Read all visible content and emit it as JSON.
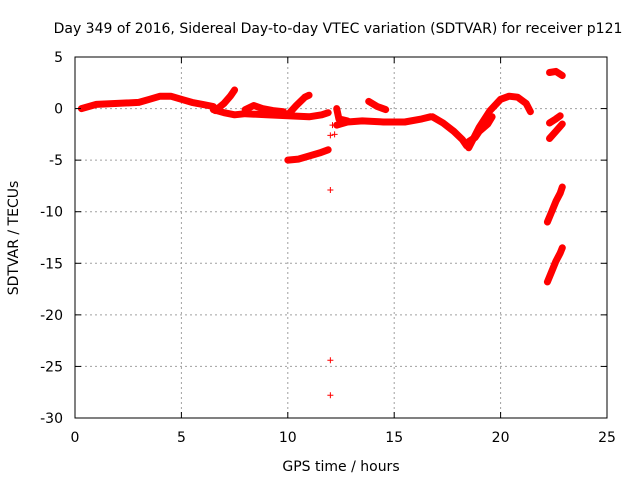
{
  "chart_data": {
    "type": "scatter",
    "title": "Day 349 of 2016, Sidereal Day-to-day VTEC variation (SDTVAR) for receiver p121",
    "xlabel": "GPS time / hours",
    "ylabel": "SDTVAR / TECUs",
    "xlim": [
      0,
      25
    ],
    "ylim": [
      -30,
      5
    ],
    "xticks": [
      0,
      5,
      10,
      15,
      20,
      25
    ],
    "yticks": [
      5,
      0,
      -5,
      -10,
      -15,
      -20,
      -25,
      -30
    ],
    "grid": true,
    "marker": "+",
    "series_color": "#ff0000",
    "series": [
      {
        "name": "SDTVAR",
        "segments": [
          [
            [
              0.3,
              0.0
            ],
            [
              1.0,
              0.4
            ],
            [
              2.0,
              0.5
            ],
            [
              3.0,
              0.6
            ],
            [
              3.5,
              0.9
            ],
            [
              4.0,
              1.2
            ],
            [
              4.5,
              1.2
            ],
            [
              5.0,
              0.9
            ],
            [
              5.5,
              0.6
            ],
            [
              6.0,
              0.4
            ],
            [
              6.5,
              0.2
            ]
          ],
          [
            [
              6.5,
              -0.1
            ],
            [
              7.0,
              -0.4
            ],
            [
              7.5,
              -0.6
            ],
            [
              8.0,
              -0.5
            ],
            [
              9.0,
              -0.6
            ],
            [
              10.0,
              -0.7
            ],
            [
              11.0,
              -0.8
            ],
            [
              11.6,
              -0.6
            ],
            [
              11.9,
              -0.4
            ]
          ],
          [
            [
              6.6,
              -0.2
            ],
            [
              7.0,
              0.5
            ],
            [
              7.3,
              1.2
            ],
            [
              7.5,
              1.8
            ]
          ],
          [
            [
              8.0,
              -0.1
            ],
            [
              8.4,
              0.3
            ],
            [
              8.8,
              0.0
            ],
            [
              9.3,
              -0.2
            ],
            [
              9.8,
              -0.3
            ]
          ],
          [
            [
              10.0,
              -0.6
            ],
            [
              10.4,
              0.3
            ],
            [
              10.8,
              1.1
            ],
            [
              11.0,
              1.3
            ]
          ],
          [
            [
              10.0,
              -5.0
            ],
            [
              10.5,
              -4.9
            ],
            [
              11.0,
              -4.6
            ],
            [
              11.5,
              -4.3
            ],
            [
              11.9,
              -4.0
            ]
          ],
          [
            [
              12.3,
              -1.6
            ],
            [
              12.8,
              -1.3
            ],
            [
              13.5,
              -1.2
            ],
            [
              14.5,
              -1.3
            ],
            [
              15.5,
              -1.3
            ],
            [
              16.3,
              -1.0
            ],
            [
              16.7,
              -0.8
            ]
          ],
          [
            [
              12.3,
              0.0
            ],
            [
              12.4,
              -1.0
            ],
            [
              12.8,
              -1.2
            ]
          ],
          [
            [
              13.8,
              0.7
            ],
            [
              14.2,
              0.2
            ],
            [
              14.6,
              -0.1
            ]
          ],
          [
            [
              16.8,
              -0.8
            ],
            [
              17.3,
              -1.4
            ],
            [
              17.8,
              -2.2
            ],
            [
              18.2,
              -3.0
            ],
            [
              18.4,
              -3.6
            ]
          ],
          [
            [
              18.5,
              -3.2
            ],
            [
              18.8,
              -2.8
            ],
            [
              19.0,
              -2.2
            ],
            [
              19.4,
              -1.5
            ],
            [
              19.6,
              -0.8
            ]
          ],
          [
            [
              18.5,
              -3.8
            ],
            [
              19.0,
              -1.8
            ],
            [
              19.5,
              -0.2
            ],
            [
              20.0,
              0.9
            ],
            [
              20.4,
              1.2
            ],
            [
              20.8,
              1.1
            ],
            [
              21.2,
              0.5
            ],
            [
              21.4,
              -0.3
            ]
          ],
          [
            [
              22.3,
              3.5
            ],
            [
              22.6,
              3.6
            ],
            [
              22.9,
              3.2
            ]
          ],
          [
            [
              22.3,
              -1.4
            ],
            [
              22.6,
              -1.0
            ],
            [
              22.8,
              -0.7
            ]
          ],
          [
            [
              22.3,
              -2.9
            ],
            [
              22.6,
              -2.2
            ],
            [
              22.9,
              -1.5
            ]
          ],
          [
            [
              22.2,
              -11.0
            ],
            [
              22.4,
              -10.0
            ],
            [
              22.6,
              -9.0
            ],
            [
              22.8,
              -8.2
            ],
            [
              22.9,
              -7.6
            ]
          ],
          [
            [
              22.2,
              -16.8
            ],
            [
              22.4,
              -15.8
            ],
            [
              22.6,
              -14.8
            ],
            [
              22.8,
              -14.0
            ],
            [
              22.9,
              -13.5
            ]
          ]
        ],
        "points": [
          [
            12.0,
            -2.6
          ],
          [
            12.0,
            -7.9
          ],
          [
            12.0,
            -24.4
          ],
          [
            12.0,
            -27.8
          ],
          [
            12.2,
            -2.5
          ],
          [
            12.1,
            -1.6
          ]
        ]
      }
    ]
  }
}
